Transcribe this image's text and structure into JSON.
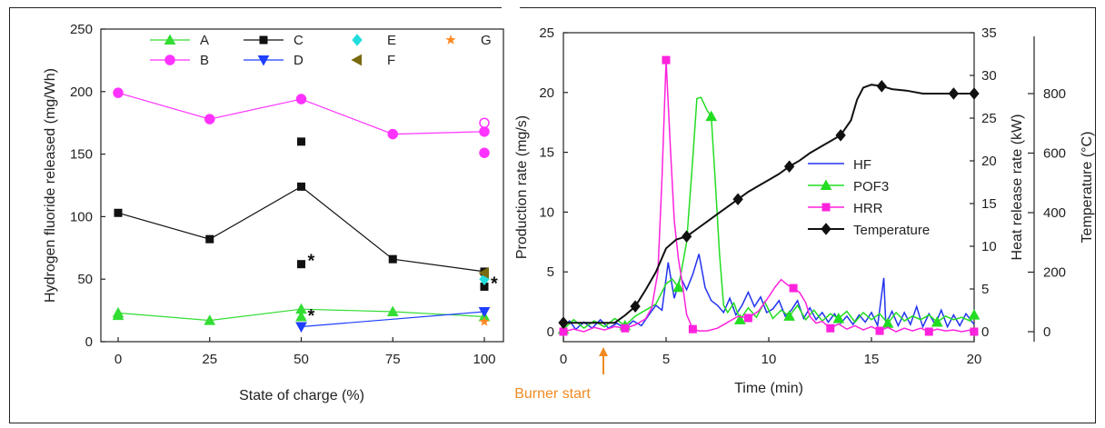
{
  "left_chart": {
    "xlabel": "State of charge (%)",
    "ylabel": "Hydrogen fluoride released (mg/Wh)",
    "xticks": [
      "0",
      "25",
      "50",
      "75",
      "100"
    ],
    "yticks": [
      "0",
      "50",
      "100",
      "150",
      "200",
      "250"
    ],
    "legend": [
      "A",
      "B",
      "C",
      "D",
      "E",
      "F",
      "G"
    ],
    "star_mark": "*"
  },
  "right_chart": {
    "xlabel": "Time (min)",
    "ylabel_left": "Production rate (mg/s)",
    "ylabel_right1": "Heat release rate (kW)",
    "ylabel_right2": "Temperature (°C)",
    "xticks": [
      "0",
      "5",
      "10",
      "15",
      "20"
    ],
    "yticks_left": [
      "0",
      "5",
      "10",
      "15",
      "20",
      "25"
    ],
    "yticks_right1": [
      "0",
      "5",
      "10",
      "15",
      "20",
      "25",
      "30",
      "35"
    ],
    "yticks_right2": [
      "0",
      "200",
      "400",
      "600",
      "800"
    ],
    "legend": [
      "HF",
      "POF3",
      "HRR",
      "Temperature"
    ],
    "annotation": "Burner start"
  },
  "chart_data": [
    {
      "type": "scatter",
      "xlabel": "State of charge (%)",
      "ylabel": "Hydrogen fluoride released (mg/Wh)",
      "xlim": [
        0,
        100
      ],
      "ylim": [
        0,
        250
      ],
      "colors": {
        "A": "#33dd33",
        "B": "#ff33ff",
        "C": "#111111",
        "D": "#1f3fff",
        "E": "#22dddd",
        "F": "#7a6a10",
        "G": "#ff8822"
      },
      "series": [
        {
          "name": "A",
          "x": [
            0,
            25,
            50,
            75,
            100
          ],
          "y": [
            23,
            17,
            26,
            24,
            20
          ],
          "line": true,
          "marker": "triangle-up",
          "extra": [
            {
              "x": 0,
              "y": 21
            },
            {
              "x": 50,
              "y": 20
            }
          ]
        },
        {
          "name": "B",
          "x": [
            0,
            25,
            50,
            75,
            100
          ],
          "y": [
            199,
            178,
            194,
            166,
            168
          ],
          "line": true,
          "marker": "circle",
          "extra": [
            {
              "x": 100,
              "y": 151
            },
            {
              "x": 100,
              "y": 175,
              "open": true
            }
          ]
        },
        {
          "name": "C",
          "x": [
            0,
            25,
            50,
            75,
            100
          ],
          "y": [
            103,
            82,
            124,
            66,
            56
          ],
          "line": true,
          "marker": "square",
          "extra": [
            {
              "x": 50,
              "y": 160
            },
            {
              "x": 50,
              "y": 62,
              "star": true
            },
            {
              "x": 100,
              "y": 44,
              "star": true
            }
          ]
        },
        {
          "name": "D",
          "x": [
            50,
            100
          ],
          "y": [
            12,
            24
          ],
          "line": true,
          "marker": "triangle-down"
        },
        {
          "name": "E",
          "x": [
            100
          ],
          "y": [
            50
          ],
          "line": false,
          "marker": "diamond"
        },
        {
          "name": "F",
          "x": [
            100
          ],
          "y": [
            55
          ],
          "line": false,
          "marker": "triangle-left"
        },
        {
          "name": "G",
          "x": [
            100
          ],
          "y": [
            16
          ],
          "line": false,
          "marker": "star"
        }
      ],
      "annotations": [
        {
          "text": "*",
          "x": 50,
          "y": 62
        },
        {
          "text": "*",
          "x": 100,
          "y": 44
        },
        {
          "text": "*",
          "x": 50,
          "y": 18
        }
      ]
    },
    {
      "type": "line",
      "xlabel": "Time (min)",
      "ylabel": "Production rate (mg/s)",
      "y2label": "Heat release rate (kW)",
      "y3label": "Temperature (°C)",
      "xlim": [
        0,
        20
      ],
      "ylim": [
        0,
        25
      ],
      "y2lim": [
        0,
        35
      ],
      "y3lim": [
        0,
        850
      ],
      "colors": {
        "HF": "#2233ee",
        "POF3": "#22dd22",
        "HRR": "#ff22dd",
        "Temperature": "#111111"
      },
      "series": [
        {
          "name": "HF",
          "axis": "left",
          "x": [
            0,
            0.3,
            0.6,
            1,
            1.4,
            1.8,
            2.2,
            2.6,
            3,
            3.4,
            3.8,
            4.2,
            4.5,
            4.8,
            5.1,
            5.4,
            5.7,
            6,
            6.3,
            6.6,
            6.9,
            7.2,
            7.5,
            7.8,
            8.1,
            8.4,
            8.7,
            9,
            9.3,
            9.6,
            9.9,
            10.2,
            10.5,
            10.8,
            11.1,
            11.4,
            11.7,
            12,
            12.3,
            12.6,
            12.9,
            13.2,
            13.5,
            13.8,
            14.1,
            14.4,
            14.7,
            15,
            15.3,
            15.6,
            15.7,
            16,
            16.3,
            16.6,
            16.9,
            17.2,
            17.5,
            17.8,
            18.1,
            18.4,
            18.7,
            19,
            19.3,
            19.6,
            20
          ],
          "y": [
            0.4,
            0.9,
            0.2,
            0.8,
            0.3,
            1,
            0.3,
            0.7,
            0.3,
            0.9,
            0.5,
            1.5,
            2.2,
            1.8,
            5.8,
            2.8,
            4.6,
            3.5,
            4.8,
            6.5,
            3.7,
            2.6,
            2.2,
            1.6,
            2.8,
            1.4,
            2.2,
            3.3,
            2.1,
            2.9,
            1.6,
            1.9,
            2.6,
            1.3,
            1.8,
            2.6,
            1.1,
            2,
            1,
            1.6,
            0.8,
            1.5,
            0.7,
            1.3,
            0.6,
            1.4,
            0.8,
            1.6,
            0.5,
            4.5,
            0.6,
            1.7,
            0.5,
            1.6,
            0.6,
            2.1,
            0.4,
            1.5,
            0.6,
            1.8,
            0.4,
            1.4,
            0.5,
            1.5,
            0.6
          ]
        },
        {
          "name": "POF3",
          "axis": "left",
          "x": [
            0,
            0.5,
            1,
            1.5,
            2,
            2.5,
            3,
            3.5,
            4,
            4.5,
            5,
            5.3,
            5.6,
            6,
            6.3,
            6.5,
            6.7,
            7,
            7.2,
            7.4,
            7.6,
            7.8,
            8,
            8.3,
            8.6,
            9,
            9.4,
            9.8,
            10.2,
            10.6,
            11,
            11.4,
            11.8,
            12.2,
            12.6,
            13,
            13.4,
            13.8,
            14.2,
            14.6,
            15,
            15.4,
            15.8,
            16.2,
            16.6,
            17,
            17.4,
            17.8,
            18.2,
            18.6,
            19,
            19.4,
            19.8,
            20
          ],
          "y": [
            0.2,
            1,
            0.3,
            0.9,
            0.4,
            1.1,
            0.5,
            1.3,
            1.8,
            2.3,
            4,
            4.4,
            3.7,
            7.5,
            14.5,
            19.5,
            19.6,
            18.5,
            18,
            12.5,
            6.5,
            2.2,
            1.6,
            2.4,
            1,
            2,
            1.2,
            2.5,
            1.1,
            1.8,
            1.3,
            2.2,
            1,
            1.8,
            0.9,
            1.5,
            1.1,
            1.7,
            0.8,
            1.6,
            1,
            1.5,
            0.7,
            1.6,
            0.9,
            1.3,
            1,
            1.4,
            0.8,
            1.3,
            1,
            1.2,
            0.9,
            1.4
          ]
        },
        {
          "name": "HRR",
          "axis": "right1",
          "x": [
            0,
            0.5,
            1,
            1.5,
            2,
            2.5,
            3,
            3.5,
            4,
            4.3,
            4.6,
            4.8,
            5,
            5.2,
            5.4,
            5.6,
            5.8,
            6,
            6.3,
            6.6,
            7,
            7.5,
            8,
            8.5,
            9,
            9.5,
            10,
            10.3,
            10.6,
            10.9,
            11.2,
            11.5,
            11.8,
            12,
            12.3,
            12.6,
            13,
            13.4,
            13.8,
            14.2,
            14.6,
            15,
            15.4,
            15.8,
            16.2,
            16.6,
            17,
            17.4,
            17.8,
            18.2,
            18.6,
            19,
            19.4,
            19.8,
            20
          ],
          "y": [
            0,
            0.3,
            0,
            0.5,
            0.2,
            0.6,
            0.4,
            0.8,
            1.5,
            2.8,
            7,
            18,
            31.8,
            22,
            13,
            8.5,
            5.5,
            2,
            0.3,
            0.1,
            0.1,
            0.4,
            1.1,
            1.8,
            1.6,
            2.4,
            4.1,
            5.2,
            6.1,
            5.5,
            5.1,
            4.6,
            3.4,
            1.8,
            1,
            1.2,
            0.4,
            0.9,
            0.3,
            0.7,
            0.2,
            0.6,
            0.1,
            0.5,
            0,
            0.4,
            0.1,
            0.4,
            0,
            0.3,
            0.1,
            0.2,
            0,
            0.2,
            0
          ]
        },
        {
          "name": "Temperature",
          "axis": "right2",
          "x": [
            0,
            1,
            2,
            2.5,
            3,
            3.5,
            4,
            4.5,
            5,
            5.5,
            6,
            6.5,
            7,
            7.5,
            8,
            8.5,
            9,
            9.5,
            10,
            10.5,
            11,
            11.5,
            12,
            12.5,
            13,
            13.5,
            14,
            14.3,
            14.6,
            15,
            15.5,
            16,
            16.7,
            17.5,
            18,
            19,
            20
          ],
          "y": [
            30,
            30,
            30,
            30,
            55,
            85,
            140,
            200,
            280,
            310,
            320,
            345,
            370,
            395,
            420,
            445,
            470,
            490,
            510,
            530,
            555,
            575,
            600,
            620,
            640,
            660,
            710,
            780,
            820,
            830,
            825,
            815,
            810,
            800,
            800,
            800,
            800
          ]
        }
      ],
      "annotations": [
        {
          "text": "Burner start",
          "x": 2
        }
      ]
    }
  ]
}
